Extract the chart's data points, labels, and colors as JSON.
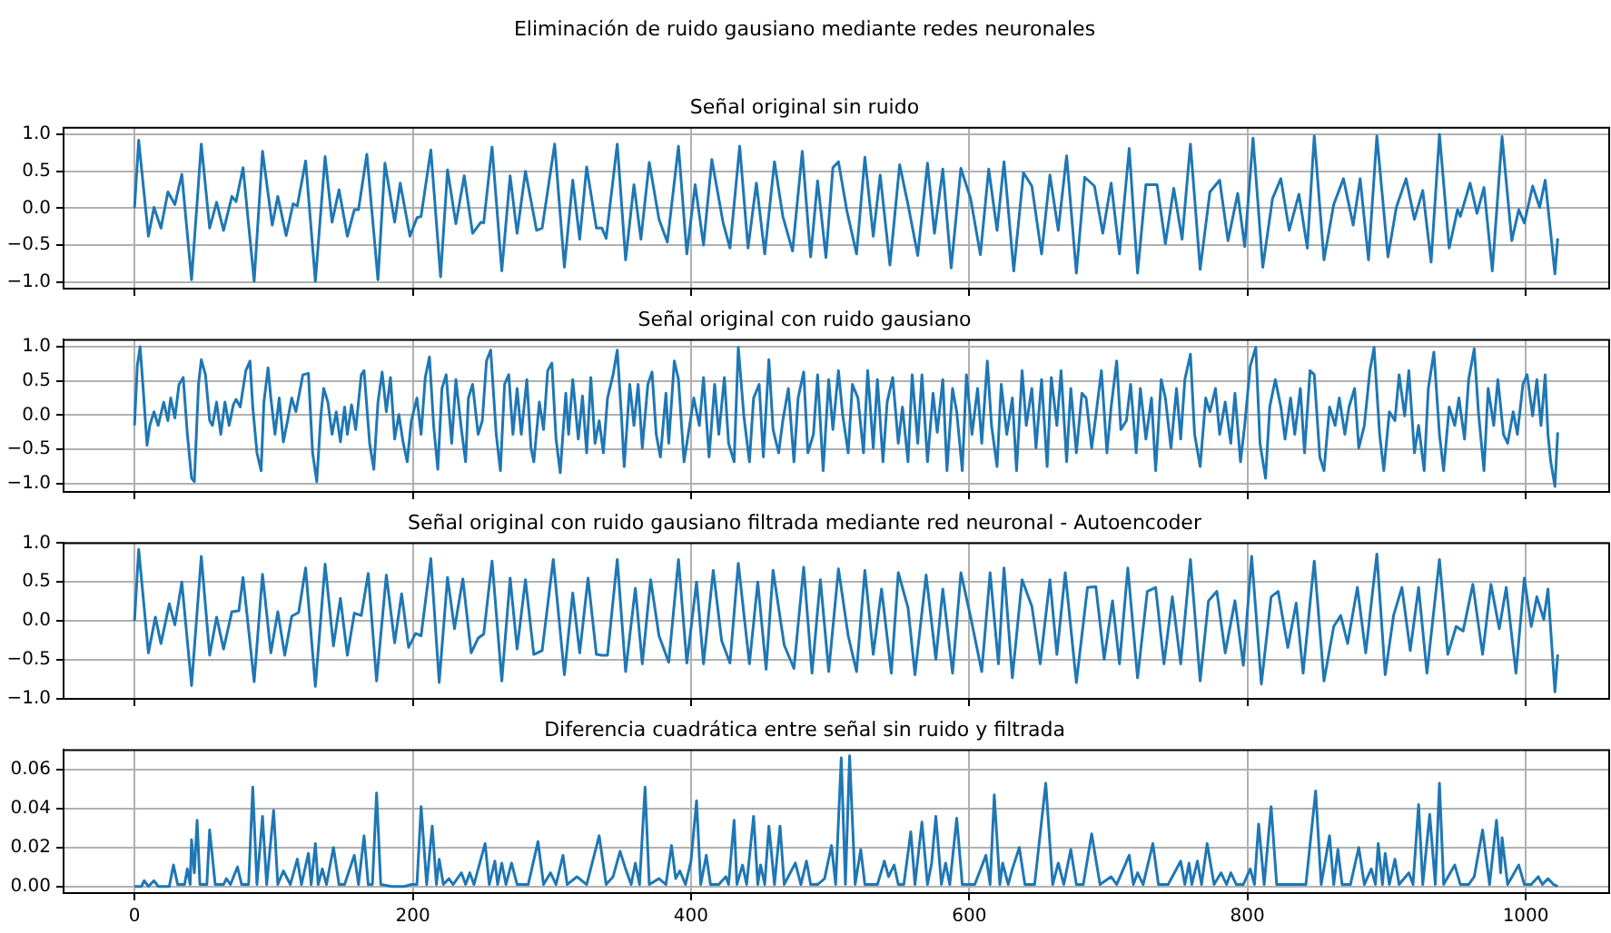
{
  "chart_data": [
    {
      "type": "line",
      "title": "Eliminación de ruido gausiano mediante redes neuronales",
      "subtitle": "Señal original sin ruido",
      "color": "#1f77b4",
      "marker": "none",
      "line_style": "solid",
      "grid": true,
      "legend": false,
      "tick_labels": "y",
      "xlim": [
        -51,
        1060
      ],
      "xticks": [
        0,
        200,
        400,
        600,
        800,
        1000
      ],
      "ylim": [
        -1.09,
        1.09
      ],
      "yticks": [
        {
          "value": -1,
          "label": "−1.0"
        },
        {
          "value": -0.5,
          "label": "−0.5"
        },
        {
          "value": 0,
          "label": "0.0"
        },
        {
          "value": 0.5,
          "label": "0.5"
        },
        {
          "value": 1,
          "label": "1.0"
        }
      ],
      "x": [
        0,
        3,
        10,
        14,
        19,
        24,
        29,
        34,
        41,
        48,
        54,
        59,
        64,
        70,
        73,
        78,
        86,
        92,
        99,
        103,
        109,
        114,
        117,
        123,
        130,
        137,
        142,
        147,
        153,
        158,
        161,
        167,
        175,
        180,
        187,
        191,
        198,
        203,
        206,
        213,
        220,
        225,
        231,
        237,
        243,
        249,
        251,
        257,
        264,
        270,
        275,
        281,
        289,
        293,
        302,
        309,
        315,
        320,
        325,
        332,
        336,
        339,
        347,
        353,
        359,
        364,
        370,
        377,
        383,
        391,
        397,
        403,
        409,
        415,
        423,
        428,
        435,
        441,
        447,
        453,
        460,
        466,
        473,
        480,
        486,
        491,
        497,
        502,
        506,
        512,
        519,
        525,
        531,
        536,
        543,
        550,
        556,
        563,
        570,
        575,
        581,
        587,
        594,
        601,
        608,
        614,
        620,
        625,
        632,
        639,
        645,
        652,
        658,
        664,
        670,
        677,
        683,
        690,
        696,
        702,
        708,
        715,
        721,
        727,
        735,
        741,
        747,
        753,
        759,
        766,
        773,
        780,
        786,
        793,
        798,
        804,
        811,
        818,
        824,
        830,
        837,
        843,
        848,
        855,
        862,
        869,
        876,
        881,
        887,
        893,
        901,
        907,
        914,
        920,
        926,
        932,
        938,
        945,
        951,
        953,
        960,
        965,
        970,
        976,
        983,
        990,
        995,
        999,
        1005,
        1010,
        1014,
        1021,
        1023
      ],
      "values": [
        0,
        0.92,
        -0.38,
        0.01,
        -0.27,
        0.22,
        0.05,
        0.46,
        -0.97,
        0.87,
        -0.27,
        0.08,
        -0.3,
        0.16,
        0.09,
        0.55,
        -0.99,
        0.77,
        -0.23,
        0.16,
        -0.37,
        0.06,
        0.03,
        0.64,
        -0.99,
        0.7,
        -0.19,
        0.25,
        -0.38,
        -0.02,
        -0.02,
        0.73,
        -0.97,
        0.61,
        -0.19,
        0.34,
        -0.38,
        -0.13,
        -0.11,
        0.79,
        -0.93,
        0.52,
        -0.21,
        0.44,
        -0.34,
        -0.19,
        -0.2,
        0.83,
        -0.85,
        0.44,
        -0.34,
        0.5,
        -0.3,
        -0.27,
        0.87,
        -0.8,
        0.38,
        -0.42,
        0.56,
        -0.27,
        -0.27,
        -0.41,
        0.87,
        -0.7,
        0.32,
        -0.42,
        0.62,
        -0.15,
        -0.46,
        0.84,
        -0.62,
        0.32,
        -0.5,
        0.66,
        -0.19,
        -0.54,
        0.84,
        -0.54,
        0.34,
        -0.62,
        0.63,
        -0.11,
        -0.58,
        0.77,
        -0.66,
        0.37,
        -0.67,
        0.55,
        0.63,
        -0.03,
        -0.62,
        0.69,
        -0.38,
        0.45,
        -0.77,
        0.59,
        0.05,
        -0.64,
        0.61,
        -0.34,
        0.53,
        -0.81,
        0.54,
        0.13,
        -0.63,
        0.53,
        -0.3,
        0.63,
        -0.85,
        0.48,
        0.3,
        -0.62,
        0.45,
        -0.3,
        0.71,
        -0.88,
        0.42,
        0.3,
        -0.34,
        0.34,
        -0.62,
        0.81,
        -0.88,
        0.32,
        0.32,
        -0.48,
        0.27,
        -0.42,
        0.87,
        -0.83,
        0.22,
        0.38,
        -0.44,
        0.2,
        -0.52,
        0.95,
        -0.8,
        0.13,
        0.4,
        -0.3,
        0.19,
        -0.54,
        0.98,
        -0.7,
        0.05,
        0.4,
        -0.23,
        0.4,
        -0.7,
        0.98,
        -0.66,
        0.01,
        0.4,
        -0.15,
        0.24,
        -0.73,
        1.0,
        -0.54,
        -0.02,
        -0.11,
        0.34,
        -0.07,
        0.28,
        -0.85,
        0.97,
        -0.44,
        -0.02,
        -0.2,
        0.3,
        0.01,
        0.38,
        -0.89,
        -0.41
      ]
    },
    {
      "type": "line",
      "title": "Señal original con ruido gausiano",
      "color": "#1f77b4",
      "marker": "none",
      "line_style": "solid",
      "grid": true,
      "legend": false,
      "tick_labels": "y",
      "xlim": [
        -51,
        1060
      ],
      "xticks": [
        0,
        200,
        400,
        600,
        800,
        1000
      ],
      "ylim": [
        -1.12,
        1.1
      ],
      "yticks": [
        {
          "value": -1,
          "label": "−1.0"
        },
        {
          "value": -0.5,
          "label": "−0.5"
        },
        {
          "value": 0,
          "label": "0.0"
        },
        {
          "value": 0.5,
          "label": "0.5"
        },
        {
          "value": 1,
          "label": "1.0"
        }
      ],
      "x": [
        0,
        2,
        4,
        6,
        9,
        11,
        14,
        17,
        21,
        24,
        26,
        29,
        32,
        35,
        38,
        41,
        43,
        46,
        48,
        51,
        54,
        56,
        59,
        62,
        65,
        68,
        71,
        73,
        76,
        80,
        83,
        85,
        88,
        91,
        93,
        96,
        98,
        101,
        104,
        107,
        110,
        113,
        116,
        121,
        125,
        128,
        131,
        134,
        136,
        139,
        142,
        145,
        148,
        151,
        153,
        156,
        159,
        163,
        165,
        169,
        172,
        175,
        178,
        181,
        184,
        187,
        190,
        193,
        196,
        199,
        203,
        206,
        209,
        212,
        215,
        218,
        221,
        224,
        228,
        231,
        235,
        238,
        240,
        243,
        247,
        250,
        253,
        256,
        260,
        263,
        266,
        269,
        272,
        275,
        278,
        282,
        285,
        287,
        291,
        294,
        297,
        300,
        303,
        306,
        310,
        312,
        315,
        319,
        322,
        325,
        328,
        331,
        334,
        337,
        340,
        344,
        347,
        350,
        352,
        356,
        359,
        362,
        365,
        369,
        372,
        375,
        378,
        382,
        384,
        388,
        391,
        395,
        399,
        402,
        406,
        409,
        413,
        417,
        420,
        424,
        427,
        431,
        434,
        438,
        442,
        445,
        449,
        452,
        456,
        459,
        463,
        466,
        470,
        474,
        477,
        481,
        484,
        488,
        491,
        495,
        499,
        502,
        506,
        509,
        513,
        516,
        520,
        524,
        527,
        531,
        534,
        538,
        541,
        545,
        549,
        552,
        556,
        559,
        563,
        566,
        570,
        574,
        577,
        581,
        584,
        588,
        591,
        595,
        598,
        602,
        606,
        609,
        613,
        616,
        620,
        623,
        627,
        631,
        634,
        638,
        641,
        645,
        648,
        652,
        656,
        659,
        663,
        666,
        670,
        673,
        677,
        681,
        684,
        688,
        691,
        695,
        699,
        702,
        706,
        709,
        713,
        716,
        720,
        723,
        727,
        731,
        734,
        738,
        741,
        745,
        749,
        752,
        755,
        759,
        762,
        766,
        770,
        773,
        777,
        780,
        784,
        788,
        791,
        795,
        798,
        802,
        806,
        809,
        813,
        816,
        820,
        824,
        827,
        831,
        834,
        838,
        841,
        845,
        848,
        852,
        855,
        859,
        863,
        866,
        870,
        873,
        877,
        880,
        884,
        888,
        891,
        895,
        898,
        902,
        906,
        909,
        913,
        916,
        920,
        923,
        927,
        930,
        934,
        938,
        941,
        945,
        949,
        952,
        956,
        959,
        963,
        966,
        970,
        973,
        977,
        980,
        984,
        987,
        991,
        994,
        998,
        1001,
        1005,
        1008,
        1011,
        1014,
        1016,
        1018,
        1021,
        1023
      ],
      "values": [
        -0.15,
        0.72,
        1.0,
        0.45,
        -0.44,
        -0.15,
        0.05,
        -0.15,
        0.19,
        -0.08,
        0.25,
        -0.04,
        0.45,
        0.55,
        -0.28,
        -0.92,
        -0.97,
        0.45,
        0.81,
        0.59,
        -0.08,
        -0.15,
        0.19,
        -0.28,
        0.19,
        -0.15,
        0.15,
        0.23,
        0.12,
        0.65,
        0.79,
        0.12,
        -0.55,
        -0.81,
        0.19,
        0.69,
        0.25,
        -0.28,
        0.25,
        -0.39,
        -0.08,
        0.25,
        0.05,
        0.59,
        0.61,
        -0.55,
        -0.97,
        0.01,
        0.39,
        0.19,
        -0.28,
        0.05,
        -0.39,
        0.12,
        -0.28,
        0.15,
        -0.21,
        0.59,
        0.65,
        -0.41,
        -0.79,
        0.19,
        0.63,
        0.05,
        0.55,
        -0.35,
        0.01,
        -0.39,
        -0.68,
        -0.08,
        0.25,
        -0.28,
        0.55,
        0.85,
        -0.15,
        -0.79,
        0.39,
        0.59,
        -0.41,
        0.52,
        -0.21,
        -0.68,
        0.25,
        0.45,
        -0.28,
        -0.08,
        0.79,
        0.95,
        -0.28,
        -0.81,
        0.45,
        0.59,
        -0.28,
        0.39,
        -0.28,
        0.52,
        -0.48,
        -0.68,
        0.19,
        -0.21,
        0.65,
        0.76,
        -0.35,
        -0.84,
        0.32,
        -0.28,
        0.52,
        -0.35,
        0.28,
        -0.55,
        0.55,
        -0.41,
        -0.08,
        -0.55,
        0.25,
        0.59,
        0.95,
        -0.01,
        -0.75,
        0.45,
        -0.15,
        0.45,
        -0.48,
        0.45,
        0.63,
        -0.28,
        -0.61,
        0.32,
        -0.41,
        0.79,
        0.52,
        -0.68,
        -0.15,
        0.25,
        -0.15,
        0.55,
        -0.61,
        0.45,
        -0.28,
        0.55,
        -0.41,
        -0.68,
        0.99,
        -0.01,
        -0.68,
        0.25,
        0.45,
        -0.61,
        0.81,
        -0.21,
        -0.55,
        -0.08,
        0.39,
        -0.68,
        0.25,
        0.63,
        -0.55,
        -0.28,
        0.59,
        -0.81,
        0.52,
        -0.21,
        0.65,
        0.01,
        -0.55,
        0.45,
        0.25,
        -0.55,
        0.65,
        -0.48,
        0.52,
        -0.68,
        0.19,
        0.55,
        -0.41,
        0.12,
        -0.68,
        0.59,
        -0.41,
        0.59,
        -0.68,
        0.32,
        -0.25,
        0.52,
        -0.81,
        0.39,
        0.05,
        -0.81,
        0.59,
        -0.28,
        0.39,
        -0.41,
        0.79,
        -0.15,
        -0.75,
        0.45,
        -0.28,
        0.25,
        -0.81,
        0.65,
        -0.15,
        0.39,
        -0.48,
        0.52,
        -0.75,
        0.55,
        -0.15,
        0.65,
        -0.68,
        0.39,
        -0.55,
        0.32,
        0.25,
        -0.48,
        -0.01,
        0.65,
        -0.55,
        0.12,
        0.79,
        -0.21,
        -0.08,
        0.45,
        -0.55,
        0.39,
        -0.35,
        0.25,
        -0.81,
        0.52,
        0.25,
        -0.48,
        0.39,
        -0.35,
        0.52,
        0.89,
        -0.28,
        -0.75,
        0.25,
        0.05,
        0.39,
        -0.28,
        0.19,
        -0.41,
        0.32,
        -0.68,
        -0.15,
        0.72,
        0.99,
        -0.41,
        -0.92,
        0.12,
        0.52,
        0.12,
        -0.35,
        0.25,
        -0.28,
        0.39,
        -0.55,
        0.65,
        0.59,
        -0.61,
        -0.81,
        0.12,
        -0.15,
        0.25,
        -0.28,
        0.12,
        0.39,
        -0.48,
        -0.15,
        0.65,
        0.99,
        -0.28,
        -0.81,
        0.05,
        -0.08,
        0.59,
        -0.01,
        0.65,
        -0.55,
        -0.15,
        -0.81,
        0.39,
        0.92,
        -0.28,
        -0.81,
        0.12,
        -0.15,
        0.25,
        -0.35,
        0.52,
        0.97,
        0.05,
        -0.81,
        0.39,
        -0.15,
        0.52,
        -0.28,
        -0.41,
        0.05,
        -0.28,
        0.45,
        0.59,
        -0.01,
        0.52,
        -0.15,
        0.59,
        -0.28,
        -0.68,
        -1.04,
        -0.25
      ]
    },
    {
      "type": "line",
      "title": "Señal original con ruido gausiano filtrada mediante red neuronal - Autoencoder",
      "color": "#1f77b4",
      "marker": "none",
      "line_style": "solid",
      "grid": true,
      "legend": false,
      "tick_labels": "y",
      "xlim": [
        -51,
        1060
      ],
      "xticks": [
        0,
        200,
        400,
        600,
        800,
        1000
      ],
      "ylim": [
        -1,
        1
      ],
      "yticks": [
        {
          "value": -1,
          "label": "−1.0"
        },
        {
          "value": -0.5,
          "label": "−0.5"
        },
        {
          "value": 0,
          "label": "0.0"
        },
        {
          "value": 0.5,
          "label": "0.5"
        },
        {
          "value": 1,
          "label": "1.0"
        }
      ],
      "x": [
        0,
        3,
        10,
        15,
        19,
        25,
        29,
        34,
        41,
        48,
        54,
        59,
        64,
        70,
        75,
        78,
        86,
        92,
        98,
        103,
        108,
        113,
        118,
        123,
        130,
        137,
        143,
        148,
        153,
        158,
        163,
        168,
        174,
        181,
        187,
        192,
        197,
        202,
        206,
        213,
        219,
        225,
        230,
        236,
        242,
        247,
        251,
        257,
        264,
        270,
        275,
        281,
        287,
        293,
        301,
        309,
        315,
        320,
        326,
        332,
        336,
        340,
        347,
        353,
        360,
        365,
        371,
        377,
        384,
        391,
        397,
        404,
        409,
        416,
        422,
        428,
        434,
        442,
        448,
        454,
        459,
        467,
        474,
        481,
        487,
        493,
        499,
        506,
        513,
        519,
        525,
        531,
        537,
        544,
        549,
        556,
        561,
        569,
        576,
        581,
        588,
        594,
        601,
        609,
        615,
        621,
        625,
        631,
        638,
        645,
        651,
        658,
        663,
        669,
        677,
        685,
        691,
        697,
        703,
        708,
        714,
        721,
        728,
        734,
        740,
        746,
        752,
        759,
        766,
        772,
        778,
        784,
        791,
        797,
        803,
        810,
        817,
        822,
        829,
        835,
        840,
        848,
        855,
        862,
        867,
        872,
        879,
        885,
        893,
        899,
        905,
        911,
        917,
        923,
        929,
        938,
        944,
        950,
        955,
        962,
        969,
        975,
        981,
        986,
        993,
        999,
        1004,
        1008,
        1013,
        1016,
        1021,
        1023
      ],
      "values": [
        0,
        0.92,
        -0.41,
        0.05,
        -0.29,
        0.22,
        -0.05,
        0.5,
        -0.83,
        0.83,
        -0.44,
        0.05,
        -0.36,
        0.12,
        0.13,
        0.56,
        -0.78,
        0.6,
        -0.41,
        0.12,
        -0.44,
        0.06,
        0.11,
        0.68,
        -0.84,
        0.73,
        -0.32,
        0.29,
        -0.44,
        0.1,
        0.07,
        0.61,
        -0.77,
        0.59,
        -0.28,
        0.35,
        -0.34,
        -0.16,
        -0.19,
        0.8,
        -0.79,
        0.56,
        -0.1,
        0.54,
        -0.41,
        -0.22,
        -0.17,
        0.77,
        -0.77,
        0.55,
        -0.36,
        0.53,
        -0.43,
        -0.38,
        0.79,
        -0.69,
        0.36,
        -0.41,
        0.55,
        -0.43,
        -0.44,
        -0.44,
        0.79,
        -0.65,
        0.42,
        -0.55,
        0.53,
        -0.19,
        -0.53,
        0.79,
        -0.54,
        0.5,
        -0.55,
        0.65,
        -0.25,
        -0.54,
        0.74,
        -0.55,
        0.5,
        -0.62,
        0.65,
        -0.31,
        -0.61,
        0.69,
        -0.67,
        0.53,
        -0.65,
        0.67,
        -0.19,
        -0.65,
        0.65,
        -0.43,
        0.41,
        -0.67,
        0.62,
        0.17,
        -0.69,
        0.59,
        -0.49,
        0.41,
        -0.67,
        0.62,
        0.05,
        -0.65,
        0.62,
        -0.55,
        0.68,
        -0.73,
        0.53,
        0.19,
        -0.55,
        0.53,
        -0.43,
        0.62,
        -0.79,
        0.43,
        0.44,
        -0.49,
        0.26,
        -0.55,
        0.68,
        -0.73,
        0.38,
        0.43,
        -0.55,
        0.31,
        -0.55,
        0.79,
        -0.77,
        0.26,
        0.38,
        -0.41,
        0.26,
        -0.57,
        0.83,
        -0.81,
        0.31,
        0.38,
        -0.34,
        0.23,
        -0.67,
        0.77,
        -0.77,
        -0.07,
        0.07,
        -0.29,
        0.43,
        -0.41,
        0.86,
        -0.69,
        0.07,
        0.43,
        -0.38,
        0.43,
        -0.67,
        0.79,
        -0.43,
        -0.07,
        -0.13,
        0.47,
        -0.43,
        0.47,
        -0.1,
        0.43,
        -0.67,
        0.55,
        -0.07,
        0.31,
        0.02,
        0.41,
        -0.91,
        -0.43
      ]
    },
    {
      "type": "line",
      "title": "Diferencia cuadrática entre señal sin ruido y filtrada",
      "color": "#1f77b4",
      "marker": "none",
      "line_style": "solid",
      "grid": true,
      "legend": false,
      "xlim": [
        -51,
        1060
      ],
      "xticks": [
        0,
        200,
        400,
        600,
        800,
        1000
      ],
      "ylim": [
        -0.0034,
        0.07
      ],
      "yticks": [
        {
          "value": 0,
          "label": "0.00"
        },
        {
          "value": 0.02,
          "label": "0.02"
        },
        {
          "value": 0.04,
          "label": "0.04"
        },
        {
          "value": 0.06,
          "label": "0.06"
        }
      ],
      "x": [
        0,
        5,
        7,
        10,
        14,
        17,
        25,
        28,
        31,
        36,
        38,
        40,
        41,
        43,
        45,
        47,
        52,
        54,
        58,
        64,
        66,
        69,
        74,
        77,
        82,
        85,
        88,
        92,
        95,
        100,
        103,
        107,
        112,
        117,
        120,
        125,
        127,
        130,
        132,
        135,
        138,
        143,
        147,
        151,
        158,
        161,
        165,
        168,
        171,
        174,
        177,
        185,
        194,
        199,
        203,
        206,
        210,
        214,
        217,
        219,
        222,
        226,
        229,
        235,
        238,
        241,
        244,
        252,
        255,
        259,
        261,
        264,
        267,
        271,
        275,
        283,
        290,
        294,
        299,
        303,
        308,
        311,
        318,
        325,
        334,
        339,
        344,
        349,
        353,
        357,
        360,
        363,
        367,
        370,
        377,
        382,
        386,
        389,
        392,
        396,
        400,
        404,
        407,
        411,
        414,
        420,
        425,
        427,
        431,
        433,
        437,
        440,
        445,
        448,
        450,
        453,
        456,
        460,
        464,
        467,
        475,
        479,
        483,
        486,
        491,
        496,
        501,
        504,
        508,
        511,
        514,
        518,
        522,
        525,
        534,
        539,
        542,
        546,
        549,
        553,
        558,
        561,
        566,
        570,
        573,
        576,
        580,
        583,
        586,
        591,
        595,
        599,
        604,
        612,
        615,
        618,
        622,
        624,
        628,
        631,
        636,
        640,
        647,
        655,
        660,
        664,
        668,
        673,
        677,
        682,
        688,
        694,
        702,
        706,
        715,
        718,
        721,
        725,
        732,
        736,
        743,
        752,
        755,
        758,
        760,
        764,
        767,
        771,
        776,
        781,
        785,
        788,
        792,
        797,
        802,
        805,
        808,
        812,
        817,
        821,
        828,
        834,
        842,
        849,
        853,
        859,
        862,
        865,
        868,
        874,
        880,
        884,
        889,
        892,
        894,
        897,
        899,
        902,
        906,
        909,
        916,
        919,
        923,
        926,
        931,
        935,
        938,
        941,
        949,
        953,
        959,
        963,
        969,
        974,
        979,
        982,
        983,
        987,
        995,
        999,
        1004,
        1009,
        1012,
        1016,
        1020,
        1023
      ],
      "values": [
        0,
        0,
        0.003,
        0,
        0.003,
        0,
        0,
        0.011,
        0.001,
        0.001,
        0.009,
        0.001,
        0.024,
        0.007,
        0.034,
        0.001,
        0.001,
        0.029,
        0.001,
        0.001,
        0.004,
        0.001,
        0.01,
        0.001,
        0.001,
        0.051,
        0.001,
        0.036,
        0.001,
        0.039,
        0.001,
        0.008,
        0.001,
        0.014,
        0.001,
        0.017,
        0.001,
        0.022,
        0.001,
        0.009,
        0.001,
        0.02,
        0.001,
        0.001,
        0.016,
        0.001,
        0.026,
        0.001,
        0.001,
        0.048,
        0.001,
        0,
        0,
        0.001,
        0.001,
        0.041,
        0.001,
        0.031,
        0.001,
        0.014,
        0.001,
        0.004,
        0.001,
        0.007,
        0.001,
        0.007,
        0.001,
        0.022,
        0.001,
        0.013,
        0.001,
        0.012,
        0.001,
        0.012,
        0.001,
        0.001,
        0.023,
        0.001,
        0.007,
        0.001,
        0.016,
        0.001,
        0.005,
        0.001,
        0.026,
        0.001,
        0.005,
        0.018,
        0.009,
        0.001,
        0.012,
        0.001,
        0.051,
        0.001,
        0.004,
        0.001,
        0.021,
        0.004,
        0.008,
        0.001,
        0.013,
        0.044,
        0.001,
        0.016,
        0.001,
        0.001,
        0.005,
        0.001,
        0.034,
        0.001,
        0.011,
        0.001,
        0.036,
        0.001,
        0.011,
        0.001,
        0.031,
        0.001,
        0.031,
        0.001,
        0.012,
        0.001,
        0.013,
        0.001,
        0.001,
        0.004,
        0.021,
        0.001,
        0.066,
        0.001,
        0.067,
        0.001,
        0.019,
        0.001,
        0.001,
        0.013,
        0.005,
        0.011,
        0.001,
        0.001,
        0.028,
        0.001,
        0.033,
        0.001,
        0.012,
        0.036,
        0.001,
        0.012,
        0.001,
        0.035,
        0.001,
        0.001,
        0.001,
        0.016,
        0.001,
        0.047,
        0.001,
        0.012,
        0.001,
        0.009,
        0.02,
        0.001,
        0.001,
        0.053,
        0.001,
        0.012,
        0.001,
        0.019,
        0.001,
        0.001,
        0.027,
        0.001,
        0.005,
        0.001,
        0.016,
        0.001,
        0.007,
        0.001,
        0.022,
        0.001,
        0.001,
        0.013,
        0.001,
        0.012,
        0.001,
        0.013,
        0.001,
        0.022,
        0.001,
        0.007,
        0.001,
        0.007,
        0.001,
        0.001,
        0.009,
        0.001,
        0.032,
        0.001,
        0.041,
        0.001,
        0.001,
        0.001,
        0.001,
        0.049,
        0.001,
        0.026,
        0.001,
        0.019,
        0.001,
        0.001,
        0.02,
        0.001,
        0.009,
        0.001,
        0.022,
        0.001,
        0.017,
        0.001,
        0.014,
        0.001,
        0.007,
        0.001,
        0.042,
        0.001,
        0.037,
        0.001,
        0.053,
        0.001,
        0.011,
        0.001,
        0.001,
        0.005,
        0.029,
        0.001,
        0.034,
        0.007,
        0.025,
        0.001,
        0.011,
        0.001,
        0.001,
        0.005,
        0.001,
        0.004,
        0.001,
        0
      ]
    }
  ]
}
